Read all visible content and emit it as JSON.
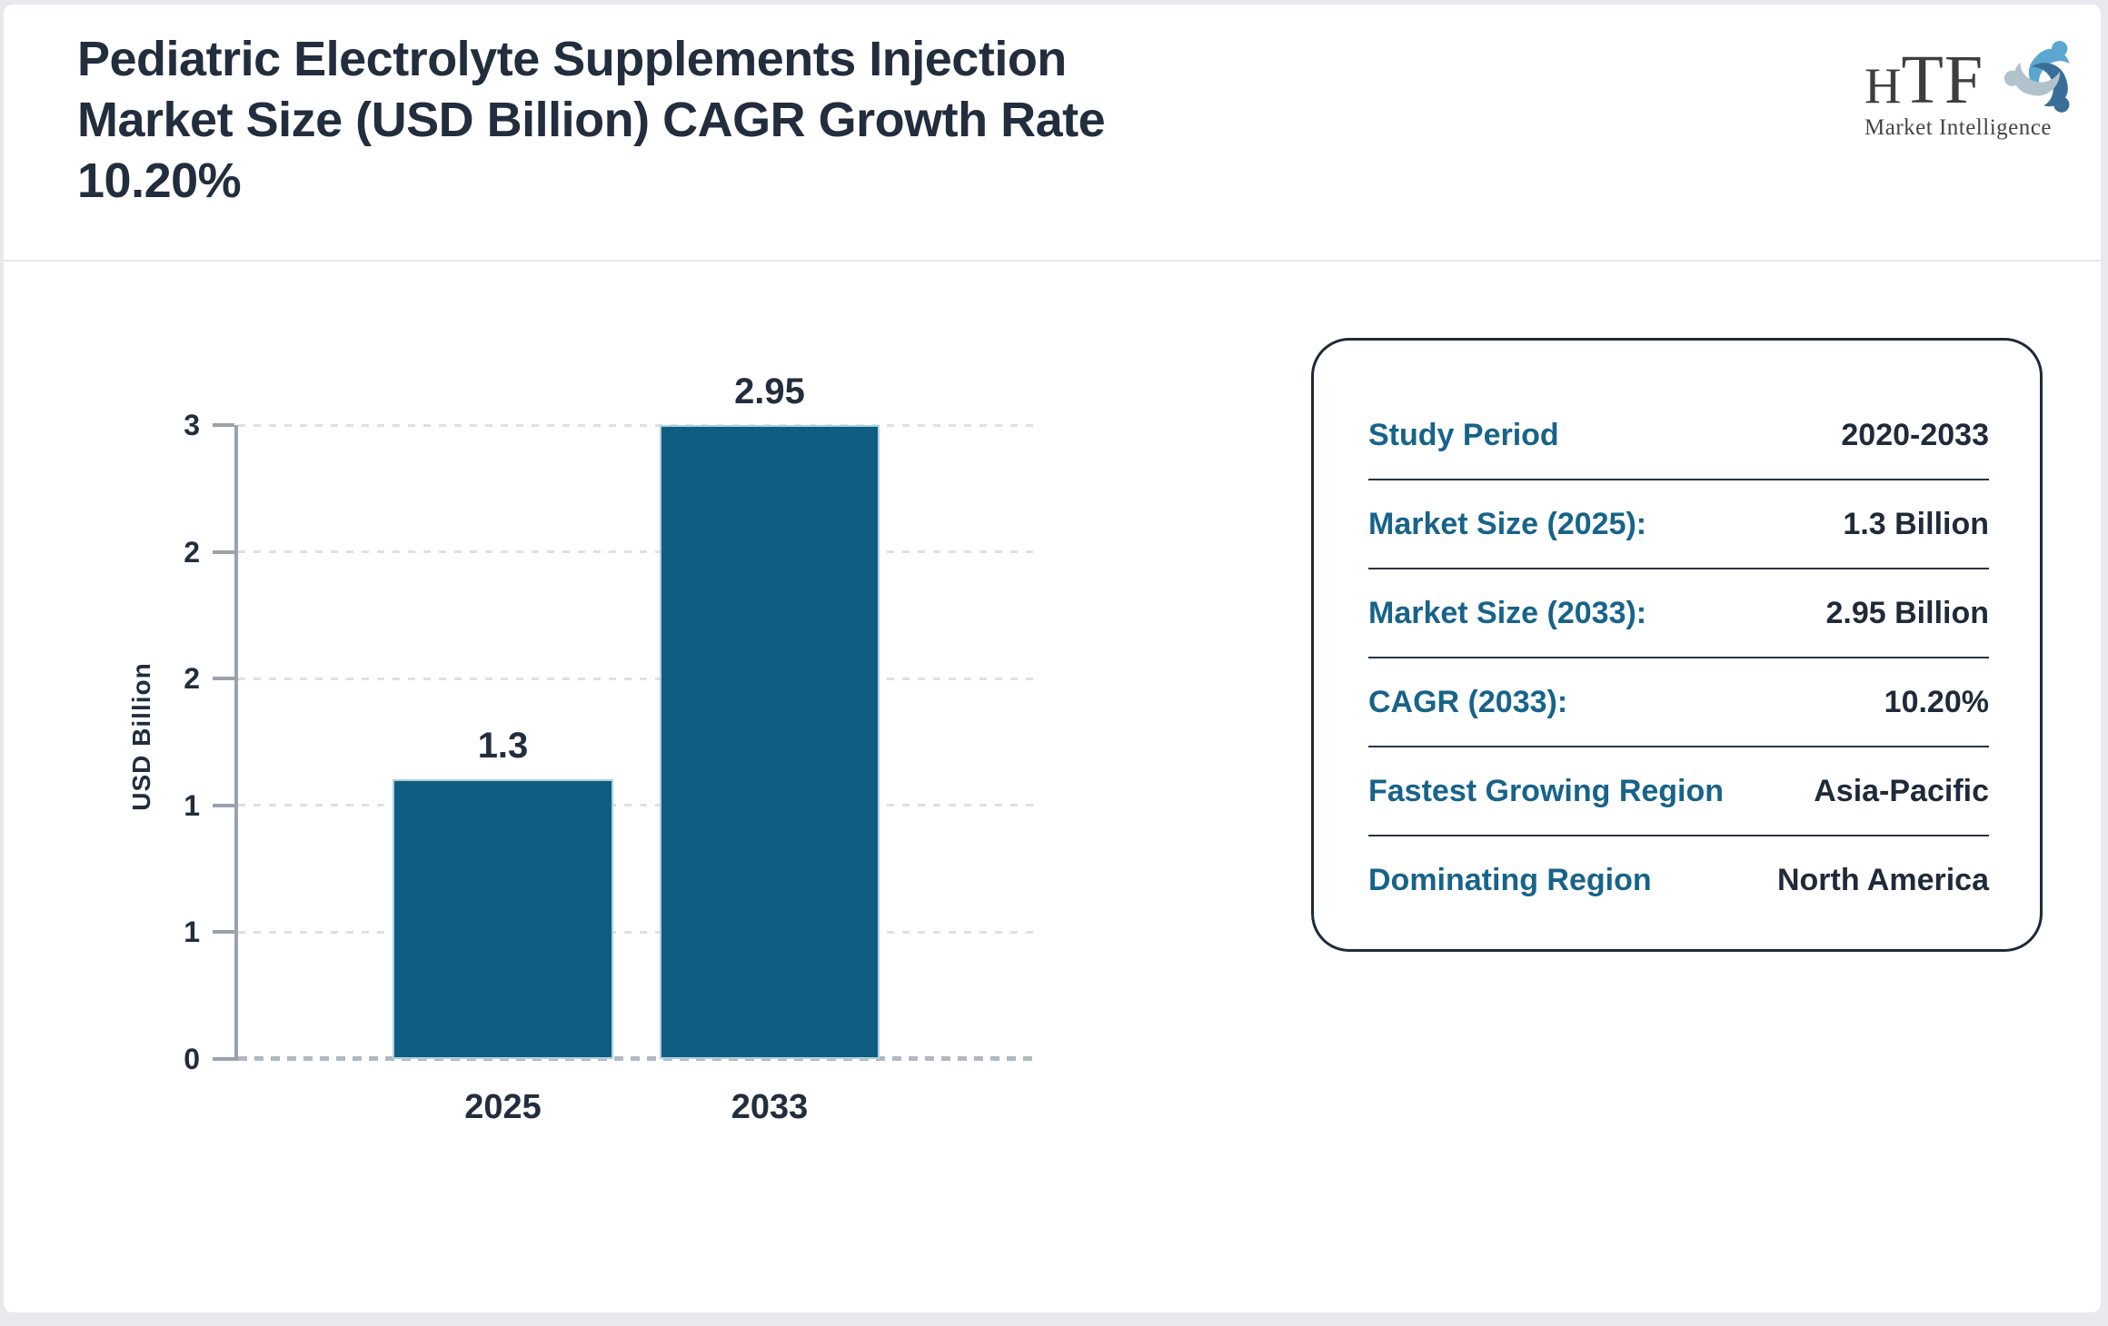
{
  "header": {
    "title": "Pediatric Electrolyte Supplements Injection\nMarket Size (USD Billion) CAGR Growth Rate\n10.20%",
    "logo": {
      "acronym_h": "H",
      "acronym_tf": "TF",
      "subtitle": "Market Intelligence",
      "icon": "three-figures-swirl-icon",
      "icon_colors": [
        "#5ba7d1",
        "#386e98",
        "#b2c2cc"
      ]
    }
  },
  "chart_data": {
    "type": "bar",
    "title": "Pediatric Electrolyte Supplements Injection Market Size (USD Billion)",
    "categories": [
      "2025",
      "2033"
    ],
    "values": [
      1.3,
      2.95
    ],
    "bar_labels": [
      "1.3",
      "2.95"
    ],
    "ylabel": "USD Billion",
    "xlabel": "",
    "ylim": [
      0,
      2.95
    ],
    "ytick_labels_top_to_bottom": [
      "3",
      "2",
      "2",
      "1",
      "1",
      "0"
    ],
    "grid": true,
    "legend": false,
    "bar_color": "#0f5d81",
    "bar_border_color": "#aecfe0",
    "axis_color": "#9aa2ad",
    "label_color": "#222d3d"
  },
  "info_panel": {
    "rows": [
      {
        "label": "Study Period",
        "value": "2020-2033"
      },
      {
        "label": "Market Size (2025):",
        "value": "1.3 Billion"
      },
      {
        "label": "Market Size (2033):",
        "value": "2.95 Billion"
      },
      {
        "label": "CAGR (2033):",
        "value": "10.20%"
      },
      {
        "label": "Fastest Growing Region",
        "value": "Asia-Pacific"
      },
      {
        "label": "Dominating Region",
        "value": "North America"
      }
    ],
    "label_color": "#17638a",
    "value_color": "#1f2a3a"
  }
}
